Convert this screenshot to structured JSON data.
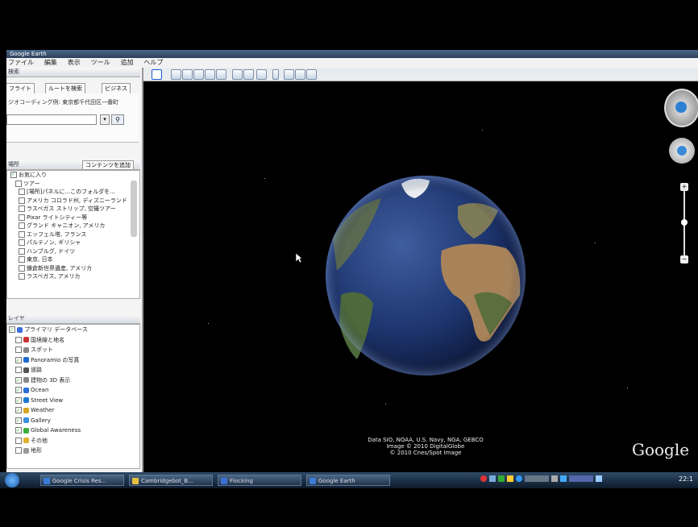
{
  "window": {
    "title": "Google Earth"
  },
  "menubar": [
    "ファイル",
    "編集",
    "表示",
    "ツール",
    "追加",
    "ヘルプ"
  ],
  "search": {
    "label": "検索",
    "tabs": [
      "フライト",
      "ルートを検索",
      "ビジネス"
    ],
    "hint": "ジオコーディング例: 東京都千代田区一番町",
    "placeholder": ""
  },
  "places": {
    "label": "場所",
    "button": "コンテンツを追加",
    "items": [
      {
        "label": "お気に入り",
        "checked": true
      },
      {
        "label": "ツアー",
        "checked": false
      },
      {
        "label": "[場所]パネルに...このフォルダを...",
        "checked": false
      },
      {
        "label": "アメリカ コロラド州, ディズニーランド",
        "checked": false
      },
      {
        "label": "ラスベガス ストリップ, 空撮ツアー",
        "checked": false
      },
      {
        "label": "Pixar ライトシティー等",
        "checked": false
      },
      {
        "label": "グランド キャニオン, アメリカ",
        "checked": false
      },
      {
        "label": "エッフェル塔, フランス",
        "checked": false
      },
      {
        "label": "パルテノン, ギリシャ",
        "checked": false
      },
      {
        "label": "ハンブルグ, ドイツ",
        "checked": false
      },
      {
        "label": "東京, 日本",
        "checked": false
      },
      {
        "label": "鎌倉新世界遺産, アメリカ",
        "checked": false
      },
      {
        "label": "ラスベガス, アメリカ",
        "checked": false
      }
    ]
  },
  "layers": {
    "label": "レイヤ",
    "items": [
      {
        "label": "プライマリ データベース",
        "checked": true,
        "icon": "#3a6fd8"
      },
      {
        "label": "国境線と地名",
        "checked": false,
        "icon": "#c33"
      },
      {
        "label": "スポット",
        "checked": false,
        "icon": "#888"
      },
      {
        "label": "Panoramio の写真",
        "checked": true,
        "icon": "#1d6bd1"
      },
      {
        "label": "道路",
        "checked": false,
        "icon": "#555"
      },
      {
        "label": "建物の 3D 表示",
        "checked": true,
        "icon": "#888"
      },
      {
        "label": "Ocean",
        "checked": true,
        "icon": "#2a6ed6"
      },
      {
        "label": "Street View",
        "checked": true,
        "icon": "#1a7ad1"
      },
      {
        "label": "Weather",
        "checked": true,
        "icon": "#d8a520"
      },
      {
        "label": "Gallery",
        "checked": true,
        "icon": "#3a8ee0"
      },
      {
        "label": "Global Awareness",
        "checked": true,
        "icon": "#3cae3c"
      },
      {
        "label": "その他",
        "checked": false,
        "icon": "#e0b030"
      },
      {
        "label": "地形",
        "checked": false,
        "icon": "#999"
      }
    ]
  },
  "credits": {
    "line1": "Data SIO, NOAA, U.S. Navy, NGA, GEBCO",
    "line2": "Image © 2010 DigitalGlobe",
    "line3": "© 2010 Cnes/Spot Image"
  },
  "logo": "Google",
  "taskbar": {
    "start": "start",
    "tasks": [
      {
        "label": "Google Crisis Res...",
        "color": "#3a7bd5"
      },
      {
        "label": "Cambridgebot_B...",
        "color": "#e8c040"
      },
      {
        "label": "Flocking",
        "color": "#3a6fd8"
      },
      {
        "label": "Google Earth",
        "color": "#3a7bd5"
      }
    ],
    "clock": "22:1"
  }
}
